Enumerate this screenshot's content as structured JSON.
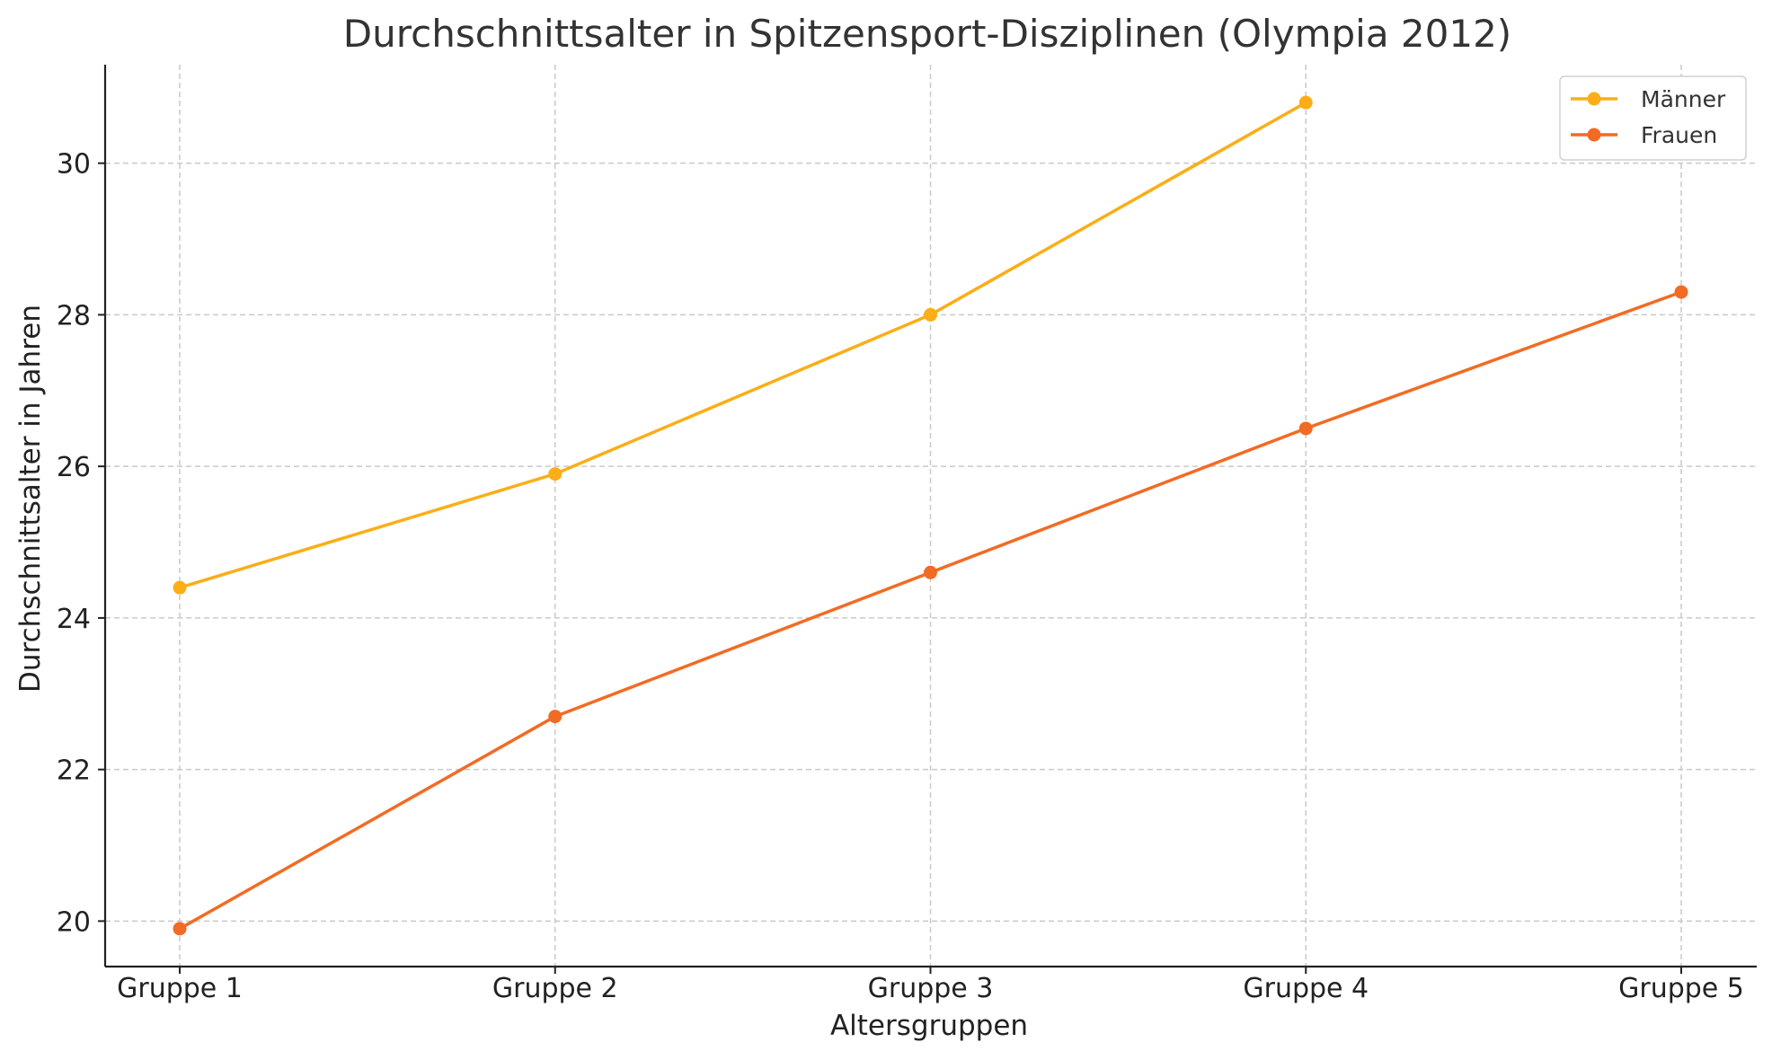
{
  "chart_data": {
    "type": "line",
    "title": "Durchschnittsalter in Spitzensport-Disziplinen (Olympia 2012)",
    "xlabel": "Altersgruppen",
    "ylabel": "Durchschnittsalter in Jahren",
    "categories": [
      "Gruppe 1",
      "Gruppe 2",
      "Gruppe 3",
      "Gruppe 4",
      "Gruppe 5"
    ],
    "ylim": [
      19.4,
      31.3
    ],
    "yticks": [
      20,
      22,
      24,
      26,
      28,
      30
    ],
    "grid": true,
    "legend_position": "top-right",
    "series": [
      {
        "name": "Männer",
        "color": "#FBAE17",
        "values": [
          24.4,
          25.9,
          28.0,
          30.8,
          null
        ]
      },
      {
        "name": "Frauen",
        "color": "#F26B24",
        "values": [
          19.9,
          22.7,
          24.6,
          26.5,
          28.3
        ]
      }
    ]
  }
}
